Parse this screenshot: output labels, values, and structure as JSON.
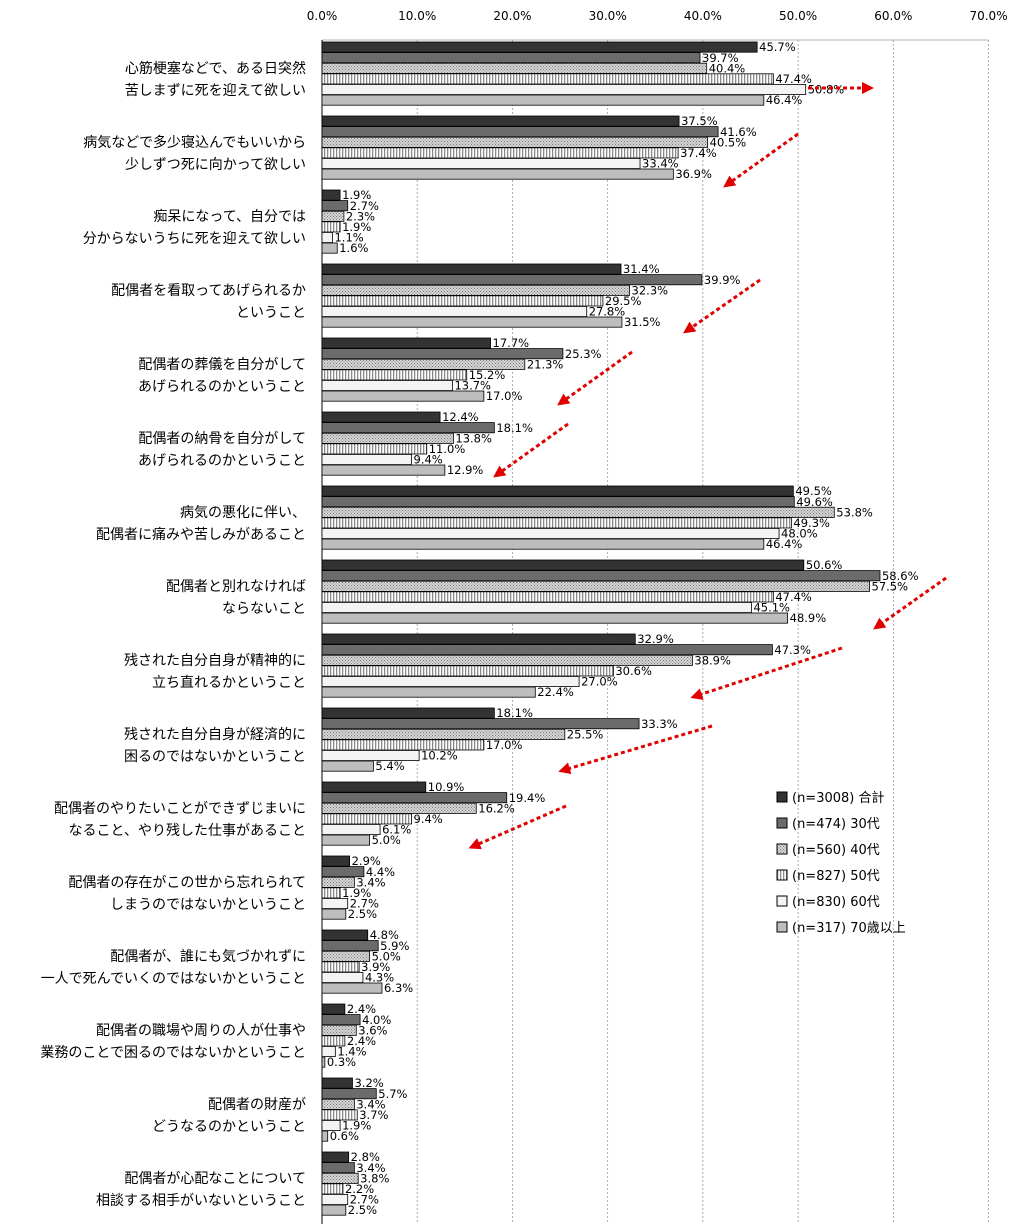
{
  "chart_data": {
    "type": "bar",
    "orientation": "horizontal",
    "x_ticks": [
      "0.0%",
      "10.0%",
      "20.0%",
      "30.0%",
      "40.0%",
      "50.0%",
      "60.0%",
      "70.0%"
    ],
    "xlim": [
      0,
      70
    ],
    "grid": "vertical dotted",
    "legend_position": "lower-right",
    "categories": [
      [
        "心筋梗塞などで、ある日突然",
        "苦しまずに死を迎えて欲しい"
      ],
      [
        "病気などで多少寝込んでもいいから",
        "少しずつ死に向かって欲しい"
      ],
      [
        "痴呆になって、自分では",
        "分からないうちに死を迎えて欲しい"
      ],
      [
        "配偶者を看取ってあげられるか",
        "ということ"
      ],
      [
        "配偶者の葬儀を自分がして",
        "あげられるのかということ"
      ],
      [
        "配偶者の納骨を自分がして",
        "あげられるのかということ"
      ],
      [
        "病気の悪化に伴い、",
        "配偶者に痛みや苦しみがあること"
      ],
      [
        "配偶者と別れなければ",
        "ならないこと"
      ],
      [
        "残された自分自身が精神的に",
        "立ち直れるかということ"
      ],
      [
        "残された自分自身が経済的に",
        "困るのではないかということ"
      ],
      [
        "配偶者のやりたいことができずじまいに",
        "なること、やり残した仕事があること"
      ],
      [
        "配偶者の存在がこの世から忘れられて",
        "しまうのではないかということ"
      ],
      [
        "配偶者が、誰にも気づかれずに",
        "一人で死んでいくのではないかということ"
      ],
      [
        "配偶者の職場や周りの人が仕事や",
        "業務のことで困るのではないかということ"
      ],
      [
        "配偶者の財産が",
        "どうなるのかということ"
      ],
      [
        "配偶者が心配なことについて",
        "相談する相手がいないということ"
      ]
    ],
    "series": [
      {
        "name": "(n=3008) 合計",
        "color": "#333333",
        "values": [
          45.7,
          37.5,
          1.9,
          31.4,
          17.7,
          12.4,
          49.5,
          50.6,
          32.9,
          18.1,
          10.9,
          2.9,
          4.8,
          2.4,
          3.2,
          2.8
        ]
      },
      {
        "name": "(n=474) 30代",
        "color": "#6b6b6b",
        "values": [
          39.7,
          41.6,
          2.7,
          39.9,
          25.3,
          18.1,
          49.6,
          58.6,
          47.3,
          33.3,
          19.4,
          4.4,
          5.9,
          4.0,
          5.7,
          3.4
        ]
      },
      {
        "name": "(n=560) 40代",
        "color": "#a3a3a3",
        "values": [
          40.4,
          40.5,
          2.3,
          32.3,
          21.3,
          13.8,
          53.8,
          57.5,
          38.9,
          25.5,
          16.2,
          3.4,
          5.0,
          3.6,
          3.4,
          3.8
        ]
      },
      {
        "name": "(n=827) 50代",
        "color": "#d2d2d2",
        "values": [
          47.4,
          37.4,
          1.9,
          29.5,
          15.2,
          11.0,
          49.3,
          47.4,
          30.6,
          17.0,
          9.4,
          1.9,
          3.9,
          2.4,
          3.7,
          2.2
        ]
      },
      {
        "name": "(n=830) 60代",
        "color": "#f2f2f2",
        "values": [
          50.8,
          33.4,
          1.1,
          27.8,
          13.7,
          9.4,
          48.0,
          45.1,
          27.0,
          10.2,
          6.1,
          2.7,
          4.3,
          1.4,
          1.9,
          2.7
        ]
      },
      {
        "name": "(n=317) 70歳以上",
        "color": "#bdbdbd",
        "values": [
          46.4,
          36.9,
          1.6,
          31.5,
          17.0,
          12.9,
          46.4,
          48.9,
          22.4,
          5.4,
          5.0,
          2.5,
          6.3,
          0.3,
          0.6,
          2.5
        ]
      }
    ]
  }
}
